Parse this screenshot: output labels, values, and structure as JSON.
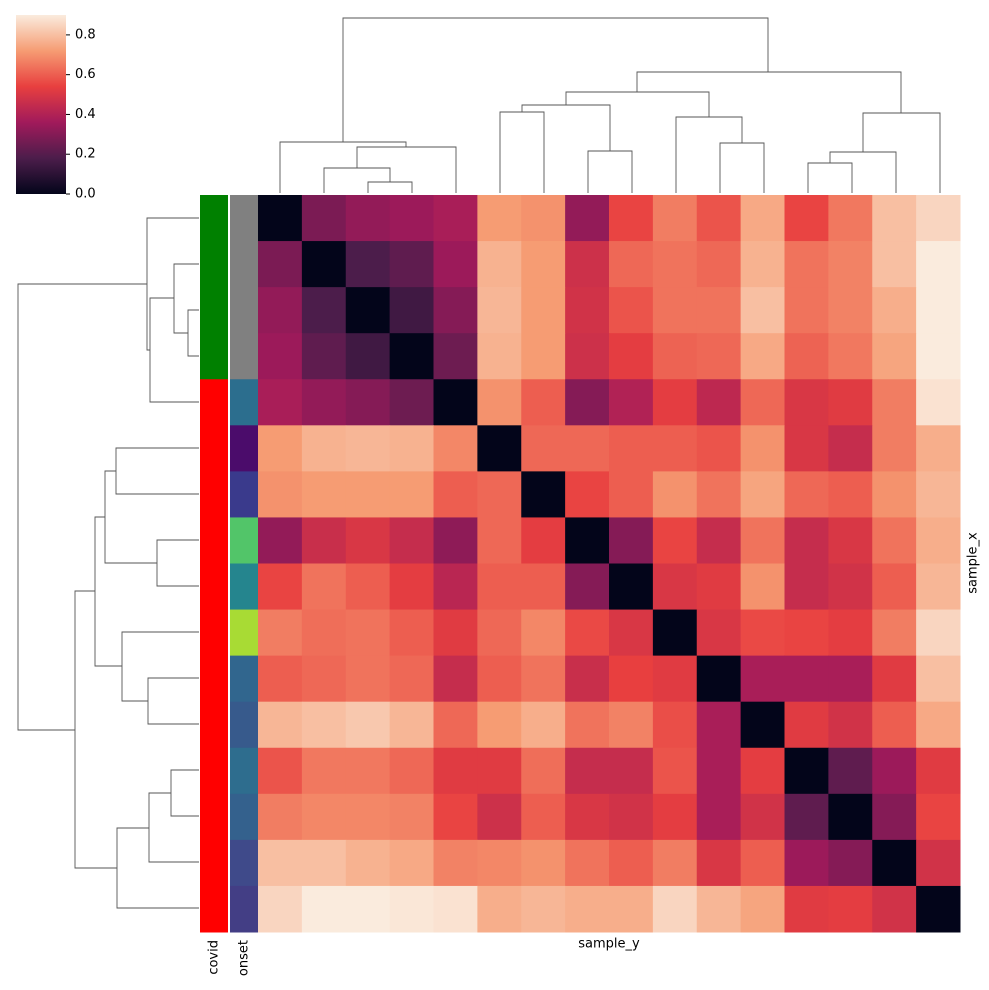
{
  "chart_data": {
    "type": "heatmap",
    "xlabel": "sample_y",
    "ylabel": "sample_x",
    "colormap": "rocket",
    "colorbar": {
      "lim": [
        0,
        0.9
      ],
      "ticks": [
        {
          "value": 0,
          "label": "0.0"
        },
        0.2,
        0.4,
        0.6,
        0.8
      ]
    },
    "row_colors": [
      {
        "name": "covid",
        "colors": [
          "#008000",
          "#008000",
          "#008000",
          "#008000",
          "#ff0000",
          "#ff0000",
          "#ff0000",
          "#ff0000",
          "#ff0000",
          "#ff0000",
          "#ff0000",
          "#ff0000",
          "#ff0000",
          "#ff0000",
          "#ff0000",
          "#ff0000"
        ]
      },
      {
        "name": "onset",
        "colors": [
          "#808080",
          "#808080",
          "#808080",
          "#808080",
          "#2c6e8e",
          "#4b0c6b",
          "#3a3a8c",
          "#52c569",
          "#25858e",
          "#a8db34",
          "#31668e",
          "#375a8c",
          "#2e6d8e",
          "#34618d",
          "#3f4a8a",
          "#433e85"
        ]
      }
    ],
    "values": [
      [
        0,
        0.28,
        0.33,
        0.35,
        0.38,
        0.72,
        0.7,
        0.33,
        0.55,
        0.66,
        0.58,
        0.75,
        0.55,
        0.65,
        0.8,
        0.85
      ],
      [
        0.28,
        0,
        0.18,
        0.22,
        0.35,
        0.77,
        0.72,
        0.47,
        0.62,
        0.64,
        0.62,
        0.77,
        0.64,
        0.67,
        0.8,
        0.9
      ],
      [
        0.33,
        0.18,
        0,
        0.15,
        0.3,
        0.78,
        0.72,
        0.48,
        0.58,
        0.64,
        0.64,
        0.8,
        0.64,
        0.67,
        0.76,
        0.9
      ],
      [
        0.35,
        0.22,
        0.15,
        0,
        0.25,
        0.77,
        0.72,
        0.47,
        0.53,
        0.61,
        0.62,
        0.75,
        0.61,
        0.65,
        0.74,
        0.9
      ],
      [
        0.38,
        0.33,
        0.3,
        0.25,
        0,
        0.7,
        0.6,
        0.3,
        0.4,
        0.53,
        0.43,
        0.62,
        0.5,
        0.52,
        0.66,
        0.88
      ],
      [
        0.72,
        0.77,
        0.78,
        0.77,
        0.68,
        0,
        0.62,
        0.62,
        0.6,
        0.6,
        0.58,
        0.7,
        0.5,
        0.45,
        0.66,
        0.76
      ],
      [
        0.7,
        0.72,
        0.72,
        0.72,
        0.6,
        0.62,
        0,
        0.55,
        0.6,
        0.7,
        0.64,
        0.74,
        0.62,
        0.6,
        0.7,
        0.78
      ],
      [
        0.33,
        0.46,
        0.5,
        0.45,
        0.32,
        0.62,
        0.53,
        0,
        0.3,
        0.55,
        0.45,
        0.64,
        0.45,
        0.5,
        0.64,
        0.76
      ],
      [
        0.55,
        0.64,
        0.6,
        0.53,
        0.42,
        0.6,
        0.6,
        0.3,
        0,
        0.5,
        0.52,
        0.7,
        0.45,
        0.48,
        0.6,
        0.78
      ],
      [
        0.66,
        0.63,
        0.64,
        0.6,
        0.52,
        0.62,
        0.68,
        0.56,
        0.5,
        0,
        0.5,
        0.56,
        0.55,
        0.53,
        0.66,
        0.85
      ],
      [
        0.6,
        0.62,
        0.64,
        0.62,
        0.45,
        0.6,
        0.64,
        0.46,
        0.54,
        0.52,
        0,
        0.38,
        0.38,
        0.38,
        0.52,
        0.8
      ],
      [
        0.78,
        0.8,
        0.82,
        0.78,
        0.62,
        0.72,
        0.76,
        0.64,
        0.67,
        0.57,
        0.38,
        0,
        0.52,
        0.48,
        0.6,
        0.75
      ],
      [
        0.58,
        0.65,
        0.65,
        0.62,
        0.52,
        0.52,
        0.63,
        0.45,
        0.45,
        0.58,
        0.38,
        0.53,
        0,
        0.22,
        0.35,
        0.52
      ],
      [
        0.66,
        0.68,
        0.68,
        0.67,
        0.55,
        0.47,
        0.6,
        0.5,
        0.48,
        0.53,
        0.38,
        0.48,
        0.22,
        0,
        0.3,
        0.55
      ],
      [
        0.8,
        0.8,
        0.77,
        0.75,
        0.67,
        0.68,
        0.7,
        0.64,
        0.6,
        0.66,
        0.5,
        0.6,
        0.35,
        0.3,
        0,
        0.48
      ],
      [
        0.85,
        0.9,
        0.9,
        0.89,
        0.88,
        0.76,
        0.78,
        0.76,
        0.76,
        0.85,
        0.78,
        0.74,
        0.52,
        0.53,
        0.48,
        0
      ]
    ]
  }
}
